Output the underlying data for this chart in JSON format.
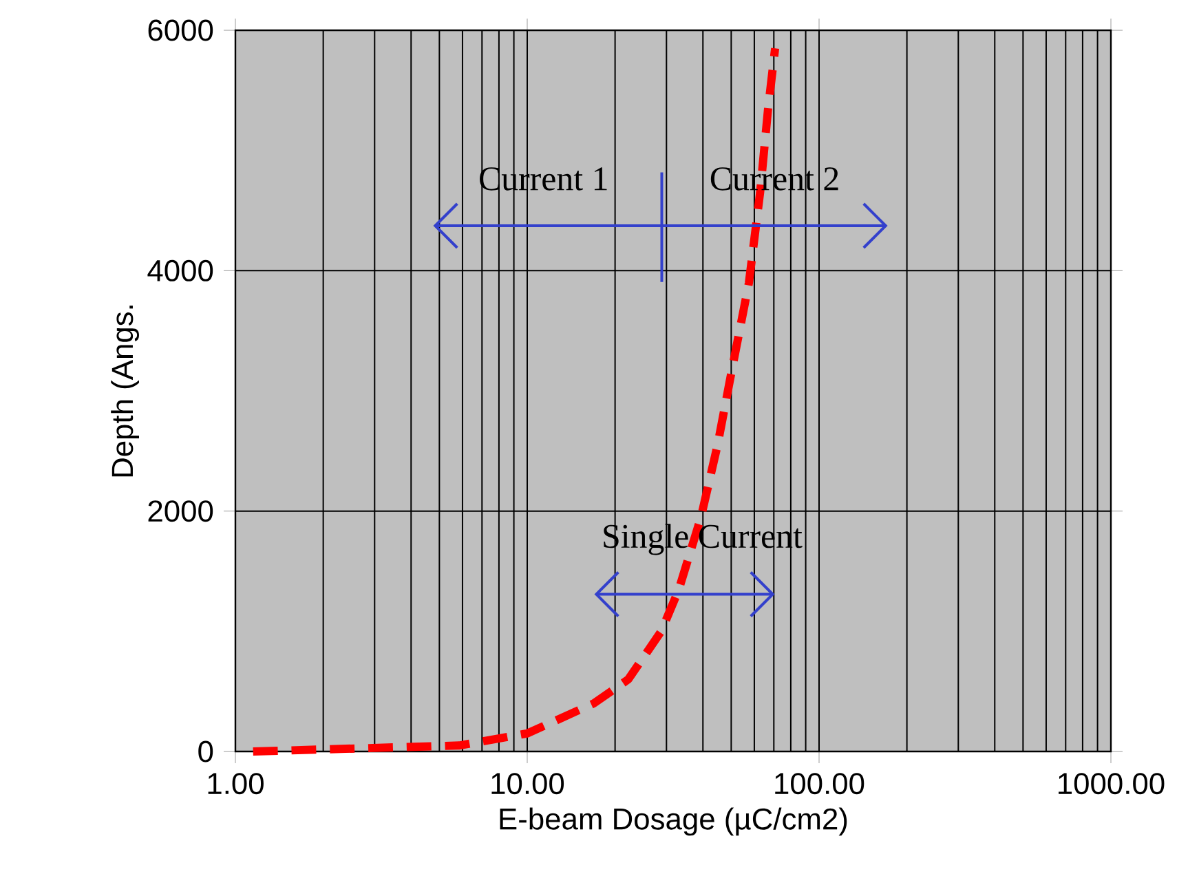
{
  "chart_data": {
    "type": "line",
    "xlabel": "E-beam Dosage (µC/cm2)",
    "ylabel": "Depth (Angs.",
    "x": [
      1.15,
      5.85,
      10,
      16.9,
      22.2,
      28.8,
      33.1,
      39.4,
      44.9,
      50.5,
      57.5,
      62.8,
      66.9,
      70.7
    ],
    "series": [
      {
        "color": "#ff0000",
        "values": [
          0,
          50,
          150,
          400,
          600,
          1000,
          1350,
          1950,
          2550,
          3200,
          3900,
          4650,
          5350,
          5850
        ]
      }
    ],
    "xlim": [
      1,
      1000
    ],
    "ylim": [
      0,
      6000
    ],
    "xticks": [
      {
        "value": 1,
        "label": "1.00"
      },
      {
        "value": 10,
        "label": "10.00"
      },
      {
        "value": 100,
        "label": "100.00"
      },
      {
        "value": 1000,
        "label": "1000.00"
      }
    ],
    "yticks": [
      0,
      2000,
      4000,
      6000
    ],
    "log": "x",
    "grid": true,
    "marker": "none",
    "line_style": "dashed",
    "annotations": [
      "Current 1",
      "Current 2",
      "Single Current"
    ]
  }
}
